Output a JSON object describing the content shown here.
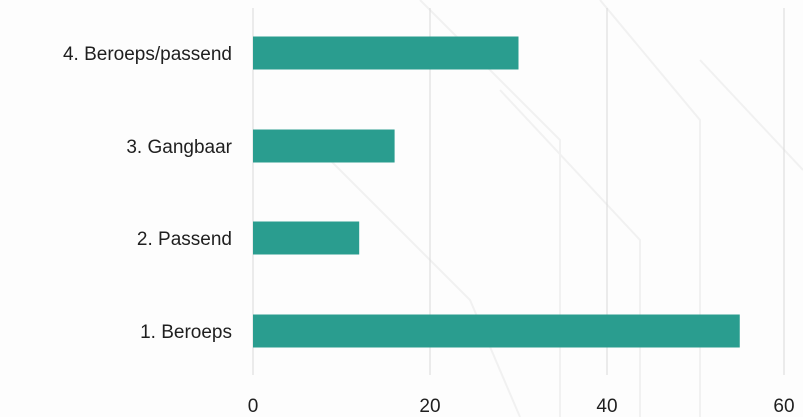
{
  "chart_data": {
    "type": "bar",
    "orientation": "horizontal",
    "categories": [
      "1. Beroeps",
      "2. Passend",
      "3. Gangbaar",
      "4. Beroeps/passend"
    ],
    "values": [
      55,
      12,
      16,
      30
    ],
    "title": "",
    "xlabel": "",
    "ylabel": "",
    "xlim": [
      0,
      60
    ],
    "xticks": [
      "0",
      "20",
      "40",
      "60"
    ],
    "grid": "vertical",
    "legend": "none",
    "colors": {
      "bar": "#2a9d8f",
      "grid": "#d9d9d9",
      "text": "#1f1f1f"
    }
  }
}
